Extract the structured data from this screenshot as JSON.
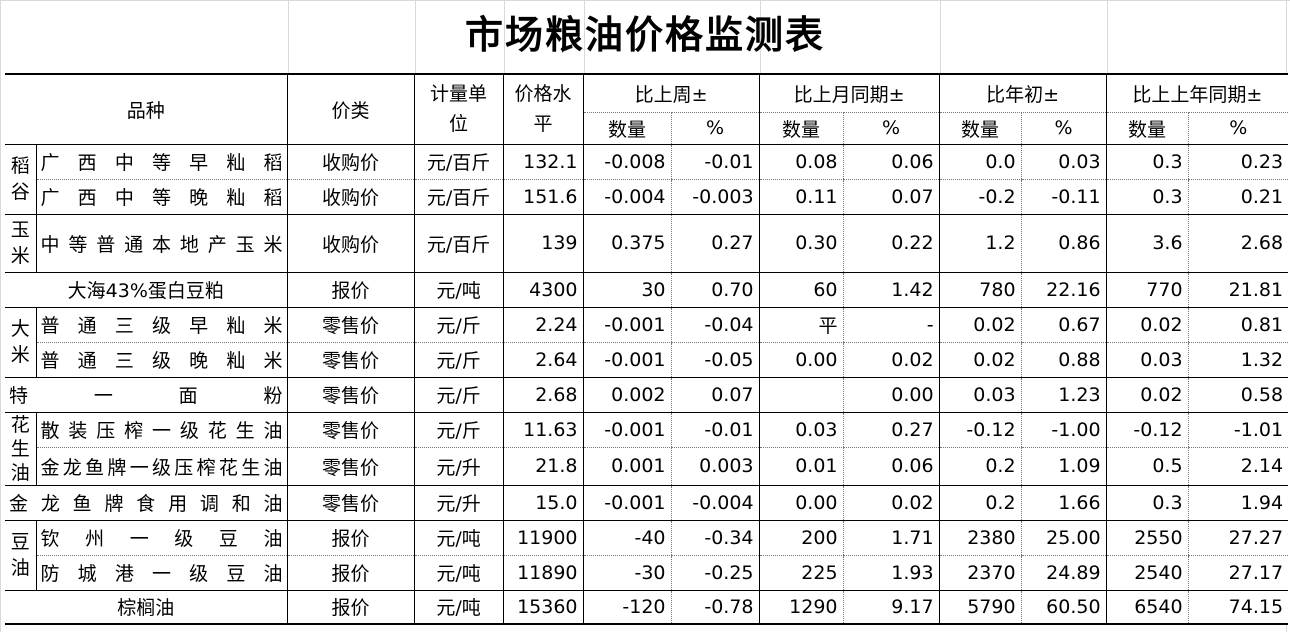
{
  "title": "市场粮油价格监测表",
  "headers": {
    "variety": "品种",
    "price_type": "价类",
    "unit": "计量单位",
    "price": "价格水平",
    "vs_last_week": "比上周±",
    "vs_last_month": "比上月同期±",
    "vs_year_start": "比年初±",
    "vs_last_year": "比上上年同期±",
    "qty": "数量",
    "pct": "%"
  },
  "groups": {
    "rice_paddy": "稻谷",
    "corn": "玉米",
    "rice": "大米",
    "peanut_oil": "花生油",
    "soybean_oil": "豆油"
  },
  "rows": [
    {
      "name": "广西中等早籼稻",
      "type": "收购价",
      "unit": "元/百斤",
      "price": "132.1",
      "wq": "-0.008",
      "wp": "-0.01",
      "mq": "0.08",
      "mp": "0.06",
      "yq": "0.0",
      "yp": "0.03",
      "lq": "0.3",
      "lp": "0.23"
    },
    {
      "name": "广西中等晚籼稻",
      "type": "收购价",
      "unit": "元/百斤",
      "price": "151.6",
      "wq": "-0.004",
      "wp": "-0.003",
      "mq": "0.11",
      "mp": "0.07",
      "yq": "-0.2",
      "yp": "-0.11",
      "lq": "0.3",
      "lp": "0.21"
    },
    {
      "name": "中等普通本地产玉米",
      "type": "收购价",
      "unit": "元/百斤",
      "price": "139",
      "wq": "0.375",
      "wp": "0.27",
      "mq": "0.30",
      "mp": "0.22",
      "yq": "1.2",
      "yp": "0.86",
      "lq": "3.6",
      "lp": "2.68"
    },
    {
      "name": "大海43%蛋白豆粕",
      "type": "报价",
      "unit": "元/吨",
      "price": "4300",
      "wq": "30",
      "wp": "0.70",
      "mq": "60",
      "mp": "1.42",
      "yq": "780",
      "yp": "22.16",
      "lq": "770",
      "lp": "21.81"
    },
    {
      "name": "普通三级早籼米",
      "type": "零售价",
      "unit": "元/斤",
      "price": "2.24",
      "wq": "-0.001",
      "wp": "-0.04",
      "mq": "平",
      "mp": "-",
      "yq": "0.02",
      "yp": "0.67",
      "lq": "0.02",
      "lp": "0.81"
    },
    {
      "name": "普通三级晚籼米",
      "type": "零售价",
      "unit": "元/斤",
      "price": "2.64",
      "wq": "-0.001",
      "wp": "-0.05",
      "mq": "0.00",
      "mp": "0.02",
      "yq": "0.02",
      "yp": "0.88",
      "lq": "0.03",
      "lp": "1.32"
    },
    {
      "name": "特一面粉",
      "type": "零售价",
      "unit": "元/斤",
      "price": "2.68",
      "wq": "0.002",
      "wp": "0.07",
      "mq": "",
      "mp": "0.00",
      "yq": "0.03",
      "yp": "1.23",
      "lq": "0.02",
      "lp": "0.58"
    },
    {
      "name": "散装压榨一级花生油",
      "type": "零售价",
      "unit": "元/斤",
      "price": "11.63",
      "wq": "-0.001",
      "wp": "-0.01",
      "mq": "0.03",
      "mp": "0.27",
      "yq": "-0.12",
      "yp": "-1.00",
      "lq": "-0.12",
      "lp": "-1.01"
    },
    {
      "name": "金龙鱼牌一级压榨花生油",
      "type": "零售价",
      "unit": "元/升",
      "price": "21.8",
      "wq": "0.001",
      "wp": "0.003",
      "mq": "0.01",
      "mp": "0.06",
      "yq": "0.2",
      "yp": "1.09",
      "lq": "0.5",
      "lp": "2.14"
    },
    {
      "name": "金龙鱼牌食用调和油",
      "type": "零售价",
      "unit": "元/升",
      "price": "15.0",
      "wq": "-0.001",
      "wp": "-0.004",
      "mq": "0.00",
      "mp": "0.02",
      "yq": "0.2",
      "yp": "1.66",
      "lq": "0.3",
      "lp": "1.94"
    },
    {
      "name": "钦州一级豆油",
      "type": "报价",
      "unit": "元/吨",
      "price": "11900",
      "wq": "-40",
      "wp": "-0.34",
      "mq": "200",
      "mp": "1.71",
      "yq": "2380",
      "yp": "25.00",
      "lq": "2550",
      "lp": "27.27"
    },
    {
      "name": "防城港一级豆油",
      "type": "报价",
      "unit": "元/吨",
      "price": "11890",
      "wq": "-30",
      "wp": "-0.25",
      "mq": "225",
      "mp": "1.93",
      "yq": "2370",
      "yp": "24.89",
      "lq": "2540",
      "lp": "27.17"
    },
    {
      "name": "棕榈油",
      "type": "报价",
      "unit": "元/吨",
      "price": "15360",
      "wq": "-120",
      "wp": "-0.78",
      "mq": "1290",
      "mp": "9.17",
      "yq": "5790",
      "yp": "60.50",
      "lq": "6540",
      "lp": "74.15"
    }
  ]
}
